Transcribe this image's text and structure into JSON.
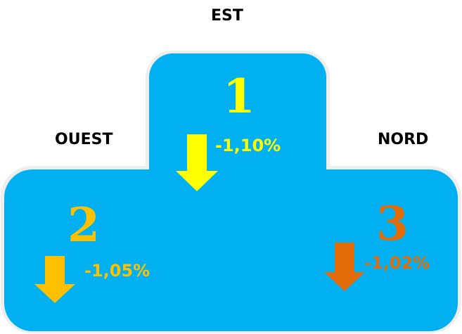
{
  "colors": {
    "podium_fill": "#00b0f0",
    "podium_edge": "#f2f2f2",
    "first": "#ffff00",
    "second": "#ffc000",
    "third": "#e36c09"
  },
  "podium": {
    "first": {
      "region": "EST",
      "rank": "1",
      "change": "-1,10%",
      "direction": "down",
      "icon": "arrow-down-icon"
    },
    "second": {
      "region": "OUEST",
      "rank": "2",
      "change": "-1,05%",
      "direction": "down",
      "icon": "arrow-down-icon"
    },
    "third": {
      "region": "NORD",
      "rank": "3",
      "change": "-1,02%",
      "direction": "down",
      "icon": "arrow-down-icon"
    }
  }
}
